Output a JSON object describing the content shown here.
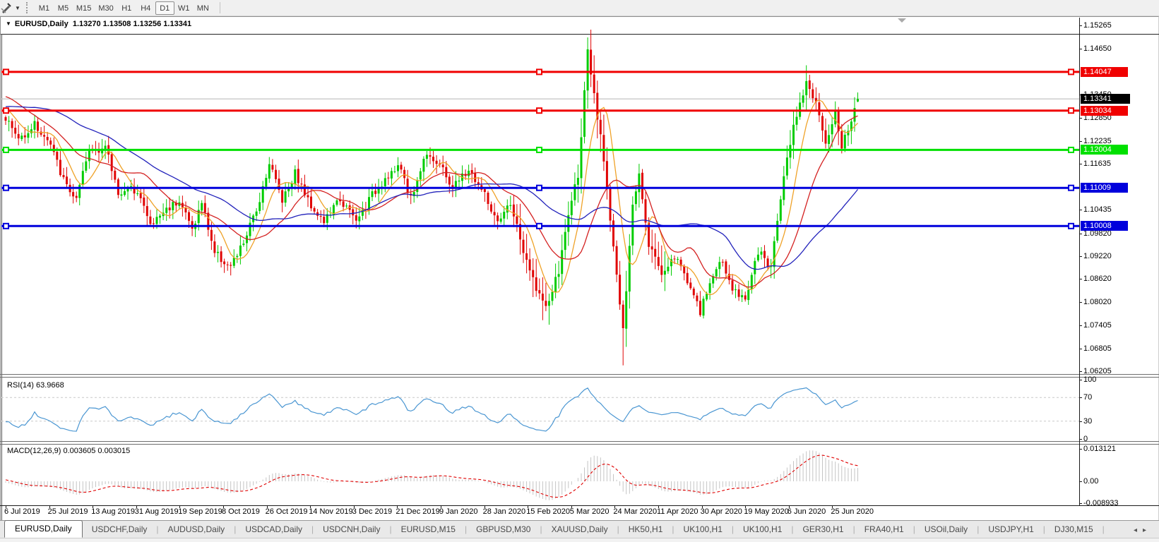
{
  "toolbar": {
    "timeframes": [
      "M1",
      "M5",
      "M15",
      "M30",
      "H1",
      "H4",
      "D1",
      "W1",
      "MN"
    ],
    "active_timeframe": "D1",
    "dropdown_glyph": "▼"
  },
  "chart_header": {
    "collapse_glyph": "▼",
    "symbol": "EURUSD,Daily",
    "ohlc": "1.13270 1.13508 1.13256 1.13341"
  },
  "price_axis": {
    "ticks": [
      "1.15265",
      "1.14650",
      "1.13450",
      "1.12850",
      "1.12235",
      "1.11635",
      "1.10435",
      "1.09820",
      "1.09220",
      "1.08620",
      "1.08020",
      "1.07405",
      "1.06805",
      "1.06205"
    ]
  },
  "levels": [
    {
      "label": "1.14047",
      "price": 1.14047,
      "color": "#f00000"
    },
    {
      "label": "1.13034",
      "price": 1.13034,
      "color": "#f00000"
    },
    {
      "label": "1.12004",
      "price": 1.12004,
      "color": "#00e000"
    },
    {
      "label": "1.11009",
      "price": 1.11009,
      "color": "#0000dc"
    },
    {
      "label": "1.10008",
      "price": 1.10008,
      "color": "#0000dc"
    }
  ],
  "current_price": {
    "label": "1.13341",
    "price": 1.13341,
    "box_color": "#000000",
    "line_color": "#b4b4b4"
  },
  "indicators": {
    "rsi": {
      "label": "RSI(14) 63.9668",
      "period": 14,
      "value": 63.9668,
      "ticks": [
        "100",
        "70",
        "30",
        "0"
      ],
      "dashed_levels": [
        70,
        30
      ],
      "line_color": "#4a96d2"
    },
    "macd": {
      "label": "MACD(12,26,9) 0.003605 0.003015",
      "fast": 12,
      "slow": 26,
      "signal": 9,
      "value_main": 0.003605,
      "value_signal": 0.003015,
      "ticks": [
        "0.013121",
        "0.00",
        "-0.008933"
      ],
      "histogram_color": "#c4c4c4",
      "signal_color": "#e00000"
    }
  },
  "date_axis": [
    "6 Jul 2019",
    "25 Jul 2019",
    "13 Aug 2019",
    "31 Aug 2019",
    "19 Sep 2019",
    "8 Oct 2019",
    "26 Oct 2019",
    "14 Nov 2019",
    "3 Dec 2019",
    "21 Dec 2019",
    "9 Jan 2020",
    "28 Jan 2020",
    "15 Feb 2020",
    "5 Mar 2020",
    "24 Mar 2020",
    "11 Apr 2020",
    "30 Apr 2020",
    "19 May 2020",
    "6 Jun 2020",
    "25 Jun 2020"
  ],
  "tabs": {
    "items": [
      "EURUSD,Daily",
      "USDCHF,Daily",
      "AUDUSD,Daily",
      "USDCAD,Daily",
      "USDCNH,Daily",
      "EURUSD,M15",
      "GBPUSD,M30",
      "XAUUSD,Daily",
      "HK50,H1",
      "UK100,H1",
      "UK100,H1",
      "GER30,H1",
      "FRA40,H1",
      "USOil,Daily",
      "USDJPY,H1",
      "DJ30,M15"
    ],
    "active": "EURUSD,Daily",
    "nav_left": "◂",
    "nav_right": "▸"
  },
  "chart_data": {
    "type": "candlestick",
    "symbol": "EURUSD",
    "timeframe": "Daily",
    "title": "EURUSD,Daily",
    "current_ohlc": {
      "open": 1.1327,
      "high": 1.13508,
      "low": 1.13256,
      "close": 1.13341
    },
    "ylim": [
      1.06132,
      1.15468
    ],
    "bull_color": "#00cc00",
    "bear_color": "#e00404",
    "candle_count": 266,
    "seed": 1337,
    "noise": 0.0024,
    "close_anchors": [
      [
        -60,
        1.123
      ],
      [
        -40,
        1.126
      ],
      [
        -20,
        1.1345
      ],
      [
        -10,
        1.1372
      ],
      [
        -4,
        1.1325
      ],
      [
        0,
        1.1285
      ],
      [
        4,
        1.1228
      ],
      [
        9,
        1.1268
      ],
      [
        14,
        1.1212
      ],
      [
        18,
        1.112
      ],
      [
        22,
        1.1068
      ],
      [
        26,
        1.12
      ],
      [
        31,
        1.1208
      ],
      [
        35,
        1.109
      ],
      [
        41,
        1.1098
      ],
      [
        45,
        1.1002
      ],
      [
        49,
        1.1038
      ],
      [
        54,
        1.1072
      ],
      [
        58,
        1.0992
      ],
      [
        61,
        1.1062
      ],
      [
        65,
        1.0932
      ],
      [
        70,
        1.0892
      ],
      [
        74,
        1.0958
      ],
      [
        78,
        1.1042
      ],
      [
        82,
        1.1168
      ],
      [
        86,
        1.1072
      ],
      [
        90,
        1.1142
      ],
      [
        94,
        1.1068
      ],
      [
        99,
        1.1012
      ],
      [
        104,
        1.1072
      ],
      [
        109,
        1.1012
      ],
      [
        114,
        1.1082
      ],
      [
        119,
        1.1138
      ],
      [
        123,
        1.1152
      ],
      [
        126,
        1.1072
      ],
      [
        131,
        1.1198
      ],
      [
        135,
        1.1158
      ],
      [
        139,
        1.1102
      ],
      [
        144,
        1.1148
      ],
      [
        149,
        1.1082
      ],
      [
        153,
        1.1002
      ],
      [
        157,
        1.1062
      ],
      [
        162,
        1.0902
      ],
      [
        168,
        1.0782
      ],
      [
        172,
        1.0882
      ],
      [
        175,
        1.1032
      ],
      [
        178,
        1.1138
      ],
      [
        181,
        1.1452
      ],
      [
        184,
        1.1282
      ],
      [
        186,
        1.1178
      ],
      [
        189,
        1.0948
      ],
      [
        192,
        1.0722
      ],
      [
        195,
        1.1052
      ],
      [
        197,
        1.1142
      ],
      [
        200,
        1.0958
      ],
      [
        204,
        1.0878
      ],
      [
        208,
        1.0922
      ],
      [
        212,
        1.0862
      ],
      [
        216,
        1.0772
      ],
      [
        220,
        1.0878
      ],
      [
        223,
        1.0908
      ],
      [
        226,
        1.0832
      ],
      [
        230,
        1.0812
      ],
      [
        234,
        1.0932
      ],
      [
        238,
        1.0892
      ],
      [
        242,
        1.1142
      ],
      [
        246,
        1.1298
      ],
      [
        249,
        1.1382
      ],
      [
        252,
        1.1318
      ],
      [
        255,
        1.1208
      ],
      [
        258,
        1.1302
      ],
      [
        260,
        1.1212
      ],
      [
        262,
        1.1252
      ],
      [
        264,
        1.1302
      ],
      [
        265,
        1.1334
      ]
    ],
    "wick_overrides": {
      "181": {
        "h": 1.1495
      },
      "249": {
        "h": 1.1422
      },
      "192": {
        "l": 1.0636
      },
      "168": {
        "l": 1.0778
      }
    },
    "moving_averages": [
      {
        "type": "sma",
        "period": 8,
        "color": "#efa228"
      },
      {
        "type": "sma",
        "period": 20,
        "color": "#d42222"
      },
      {
        "type": "sma",
        "period": 45,
        "color": "#2222bb"
      }
    ],
    "horizontal_levels": [
      1.14047,
      1.13034,
      1.12004,
      1.11009,
      1.10008
    ],
    "bid_price": 1.13341,
    "shift_marker_x": 1275
  }
}
